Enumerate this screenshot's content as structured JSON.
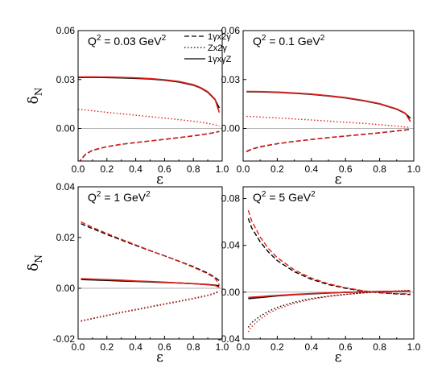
{
  "legend": [
    {
      "label": "1γx2γ",
      "style": "dashed"
    },
    {
      "label": "Zx2γ",
      "style": "dotted"
    },
    {
      "label": "1γxγZ",
      "style": "solid"
    }
  ],
  "colors": {
    "black": "#000000",
    "red": "#e0201c",
    "zero_line": "#999999"
  },
  "chart_data": [
    {
      "type": "line",
      "title_main": "Q",
      "title_sup": "2",
      "title_rest": " = 0.03 GeV",
      "title_sup2": "2",
      "xlabel": "ε",
      "ylabel_main": "δ",
      "ylabel_sub": "N",
      "xlim": [
        0,
        1
      ],
      "ylim": [
        -0.02,
        0.06
      ],
      "xticks": [
        "0.0",
        "0.2",
        "0.4",
        "0.6",
        "0.8",
        "1.0"
      ],
      "yticks": [
        {
          "v": 0.0,
          "label": "0.00"
        },
        {
          "v": 0.03,
          "label": "0.03"
        },
        {
          "v": 0.06,
          "label": "0.06"
        }
      ],
      "x": [
        0.0,
        0.05,
        0.1,
        0.2,
        0.3,
        0.4,
        0.5,
        0.6,
        0.7,
        0.8,
        0.85,
        0.9,
        0.95,
        0.98
      ],
      "series": [
        {
          "style": "dashed",
          "color": "black",
          "values": [
            -0.0215,
            -0.016,
            -0.0135,
            -0.0112,
            -0.0098,
            -0.0087,
            -0.0077,
            -0.0067,
            -0.0057,
            -0.0046,
            -0.004,
            -0.0033,
            -0.0025,
            -0.0019
          ]
        },
        {
          "style": "dashed",
          "color": "red",
          "values": [
            -0.0212,
            -0.0158,
            -0.0133,
            -0.0111,
            -0.0097,
            -0.0086,
            -0.0076,
            -0.0066,
            -0.0056,
            -0.0045,
            -0.0039,
            -0.0032,
            -0.0024,
            -0.0018
          ]
        },
        {
          "style": "dotted",
          "color": "red",
          "values": [
            0.0118,
            0.0113,
            0.0108,
            0.0099,
            0.009,
            0.0081,
            0.0072,
            0.0063,
            0.0054,
            0.0044,
            0.0038,
            0.0031,
            0.0022,
            0.0015
          ]
        },
        {
          "style": "solid",
          "color": "black",
          "values": [
            0.0312,
            0.0313,
            0.0313,
            0.0312,
            0.031,
            0.0307,
            0.0303,
            0.0296,
            0.0285,
            0.0265,
            0.0248,
            0.0222,
            0.0178,
            0.0125
          ]
        },
        {
          "style": "solid",
          "color": "red",
          "values": [
            0.0315,
            0.0316,
            0.0316,
            0.0315,
            0.0313,
            0.031,
            0.0306,
            0.0299,
            0.0288,
            0.0268,
            0.0251,
            0.0225,
            0.018,
            0.0098
          ]
        }
      ]
    },
    {
      "type": "line",
      "title_main": "Q",
      "title_sup": "2",
      "title_rest": " = 0.1 GeV",
      "title_sup2": "2",
      "xlabel": "ε",
      "xlim": [
        0,
        1
      ],
      "ylim": [
        -0.02,
        0.06
      ],
      "xticks": [
        "0.0",
        "0.2",
        "0.4",
        "0.6",
        "0.8",
        "1.0"
      ],
      "yticks": [
        {
          "v": 0.0,
          "label": "0.00"
        },
        {
          "v": 0.03,
          "label": "0.03"
        },
        {
          "v": 0.06,
          "label": "0.06"
        }
      ],
      "x": [
        0.02,
        0.05,
        0.1,
        0.2,
        0.3,
        0.4,
        0.5,
        0.6,
        0.7,
        0.8,
        0.9,
        0.95,
        0.98
      ],
      "series": [
        {
          "style": "dashed",
          "color": "black",
          "values": [
            -0.0142,
            -0.0128,
            -0.0113,
            -0.0094,
            -0.008,
            -0.0068,
            -0.0057,
            -0.0047,
            -0.0037,
            -0.0027,
            -0.0016,
            -0.001,
            -0.0006
          ]
        },
        {
          "style": "dashed",
          "color": "red",
          "values": [
            -0.014,
            -0.0126,
            -0.0111,
            -0.0093,
            -0.0079,
            -0.0067,
            -0.0056,
            -0.0046,
            -0.0036,
            -0.0026,
            -0.0015,
            -0.0009,
            -0.0005
          ]
        },
        {
          "style": "dotted",
          "color": "red",
          "values": [
            0.0074,
            0.0073,
            0.007,
            0.0064,
            0.0058,
            0.0052,
            0.0045,
            0.0038,
            0.0031,
            0.0023,
            0.0014,
            0.0009,
            0.0006
          ]
        },
        {
          "style": "solid",
          "color": "black",
          "values": [
            0.0225,
            0.0225,
            0.0224,
            0.0221,
            0.0216,
            0.0209,
            0.0199,
            0.0187,
            0.0171,
            0.015,
            0.0118,
            0.0092,
            0.0062
          ]
        },
        {
          "style": "solid",
          "color": "red",
          "values": [
            0.0227,
            0.0227,
            0.0226,
            0.0223,
            0.0218,
            0.0211,
            0.0201,
            0.0189,
            0.0173,
            0.0152,
            0.012,
            0.0094,
            0.0042
          ]
        }
      ]
    },
    {
      "type": "line",
      "title_main": "Q",
      "title_sup": "2",
      "title_rest": " = 1 GeV",
      "title_sup2": "2",
      "xlabel": "ε",
      "ylabel_main": "δ",
      "ylabel_sub": "N",
      "xlim": [
        0,
        1
      ],
      "ylim": [
        -0.02,
        0.04
      ],
      "xticks": [
        "0.0",
        "0.2",
        "0.4",
        "0.6",
        "0.8",
        "1.0"
      ],
      "yticks": [
        {
          "v": -0.02,
          "label": "-0.02"
        },
        {
          "v": 0.0,
          "label": "0.00"
        },
        {
          "v": 0.02,
          "label": "0.02"
        },
        {
          "v": 0.04,
          "label": "0.04"
        }
      ],
      "x": [
        0.02,
        0.05,
        0.1,
        0.2,
        0.3,
        0.4,
        0.5,
        0.6,
        0.7,
        0.8,
        0.9,
        0.95,
        0.98
      ],
      "series": [
        {
          "style": "dashed",
          "color": "black",
          "values": [
            0.0255,
            0.0247,
            0.0235,
            0.0212,
            0.019,
            0.0169,
            0.0148,
            0.0128,
            0.0107,
            0.0085,
            0.006,
            0.0043,
            0.003
          ]
        },
        {
          "style": "dashed",
          "color": "red",
          "values": [
            0.0262,
            0.0253,
            0.024,
            0.0216,
            0.0193,
            0.0171,
            0.0149,
            0.0128,
            0.0106,
            0.0083,
            0.0057,
            0.004,
            0.0013
          ]
        },
        {
          "style": "dotted",
          "color": "black",
          "values": [
            -0.013,
            -0.0126,
            -0.012,
            -0.0108,
            -0.0096,
            -0.0085,
            -0.0074,
            -0.0063,
            -0.0052,
            -0.0041,
            -0.0029,
            -0.002,
            -0.0013
          ]
        },
        {
          "style": "dotted",
          "color": "red",
          "values": [
            -0.0128,
            -0.0124,
            -0.0118,
            -0.0106,
            -0.0094,
            -0.0083,
            -0.0072,
            -0.0061,
            -0.005,
            -0.0039,
            -0.0027,
            -0.0018,
            -0.0008
          ]
        },
        {
          "style": "solid",
          "color": "black",
          "values": [
            0.0035,
            0.0034,
            0.0033,
            0.0031,
            0.0029,
            0.0027,
            0.0025,
            0.0023,
            0.0021,
            0.0018,
            0.0015,
            0.0012,
            0.001
          ]
        },
        {
          "style": "solid",
          "color": "red",
          "values": [
            0.0038,
            0.0037,
            0.0036,
            0.0034,
            0.0032,
            0.0029,
            0.0027,
            0.0024,
            0.0021,
            0.0018,
            0.0014,
            0.0011,
            0.0004
          ]
        }
      ]
    },
    {
      "type": "line",
      "title_main": "Q",
      "title_sup": "2",
      "title_rest": " = 5 GeV",
      "title_sup2": "2",
      "xlabel": "ε",
      "xlim": [
        0,
        1
      ],
      "ylim": [
        -0.04,
        0.09
      ],
      "xticks": [
        "0.0",
        "0.2",
        "0.4",
        "0.6",
        "0.8",
        "1.0"
      ],
      "yticks": [
        {
          "v": -0.04,
          "label": "-0.04"
        },
        {
          "v": 0.0,
          "label": "0.00"
        },
        {
          "v": 0.04,
          "label": "0.04"
        },
        {
          "v": 0.08,
          "label": "0.08"
        }
      ],
      "x": [
        0.03,
        0.05,
        0.1,
        0.15,
        0.2,
        0.3,
        0.4,
        0.5,
        0.6,
        0.7,
        0.8,
        0.9,
        0.98
      ],
      "series": [
        {
          "style": "dashed",
          "color": "black",
          "values": [
            0.063,
            0.055,
            0.043,
            0.034,
            0.027,
            0.0175,
            0.011,
            0.0065,
            0.0033,
            0.001,
            -0.0005,
            -0.0015,
            -0.002
          ]
        },
        {
          "style": "dashed",
          "color": "red",
          "values": [
            0.07,
            0.061,
            0.047,
            0.037,
            0.0295,
            0.019,
            0.012,
            0.0072,
            0.0038,
            0.0013,
            -0.0003,
            -0.0012,
            -0.0015
          ]
        },
        {
          "style": "dotted",
          "color": "black",
          "values": [
            -0.03,
            -0.026,
            -0.0205,
            -0.0162,
            -0.013,
            -0.0085,
            -0.0055,
            -0.0034,
            -0.0018,
            -0.0006,
            0.0003,
            0.001,
            0.0015
          ]
        },
        {
          "style": "dotted",
          "color": "red",
          "values": [
            -0.034,
            -0.0295,
            -0.023,
            -0.018,
            -0.0145,
            -0.0095,
            -0.0061,
            -0.0037,
            -0.002,
            -0.0007,
            0.0003,
            0.001,
            0.0014
          ]
        },
        {
          "style": "solid",
          "color": "black",
          "values": [
            -0.0055,
            -0.0052,
            -0.0045,
            -0.0038,
            -0.0032,
            -0.0022,
            -0.0014,
            -0.0007,
            -0.0002,
            0.0002,
            0.0005,
            0.0007,
            0.0008
          ]
        },
        {
          "style": "solid",
          "color": "red",
          "values": [
            -0.0045,
            -0.0043,
            -0.0038,
            -0.0033,
            -0.0028,
            -0.0019,
            -0.0012,
            -0.0006,
            -0.0001,
            0.0003,
            0.0005,
            0.0007,
            0.0008
          ]
        }
      ]
    }
  ]
}
